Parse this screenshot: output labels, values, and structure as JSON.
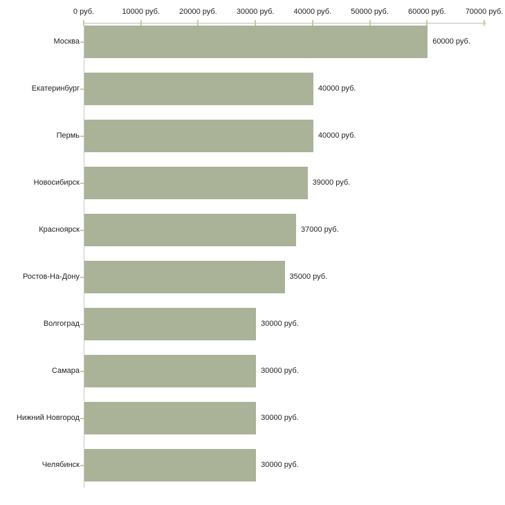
{
  "chart_data": {
    "type": "bar",
    "orientation": "horizontal",
    "title": "",
    "xlabel": "",
    "ylabel": "",
    "unit": "руб.",
    "categories": [
      "Москва",
      "Екатеринбург",
      "Пермь",
      "Новосибирск",
      "Красноярск",
      "Ростов-На-Дону",
      "Волгоград",
      "Самара",
      "Нижний Новгород",
      "Челябинск"
    ],
    "values": [
      60000,
      40000,
      40000,
      39000,
      37000,
      35000,
      30000,
      30000,
      30000,
      30000
    ],
    "value_labels": [
      "60000 руб.",
      "40000 руб.",
      "40000 руб.",
      "39000 руб.",
      "37000 руб.",
      "35000 руб.",
      "30000 руб.",
      "30000 руб.",
      "30000 руб.",
      "30000 руб."
    ],
    "x_tick_labels": [
      "0 руб.",
      "10000 руб.",
      "20000 руб.",
      "30000 руб.",
      "40000 руб.",
      "50000 руб.",
      "60000 руб.",
      "70000 руб."
    ],
    "x_tick_values": [
      0,
      10000,
      20000,
      30000,
      40000,
      50000,
      60000,
      70000
    ],
    "xlim": [
      0,
      70000
    ],
    "grid": false,
    "legend": false,
    "colors": {
      "bar": "#aab298",
      "axis_line": "#bdbdbd",
      "tick": "#caca96",
      "text": "#222222",
      "background": "#ffffff"
    }
  }
}
